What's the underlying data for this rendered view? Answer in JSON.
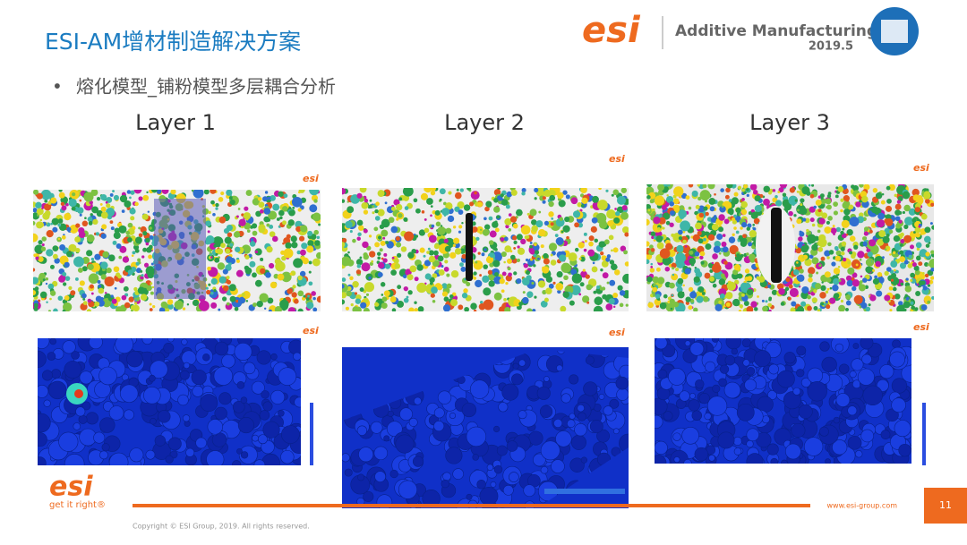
{
  "header": {
    "title": "ESI-AM增材制造解决方案",
    "logo_text": "esi",
    "product": "Additive Manufacturing",
    "date": "2019.5"
  },
  "bullet": "熔化模型_铺粉模型多层耦合分析",
  "layers": [
    "Layer 1",
    "Layer 2",
    "Layer 3"
  ],
  "footer": {
    "logo_text": "esi",
    "tagline": "get it right®",
    "website": "www.esi-group.com",
    "page_number": "11",
    "copyright": "Copyright © ESI Group, 2019. All rights reserved."
  }
}
